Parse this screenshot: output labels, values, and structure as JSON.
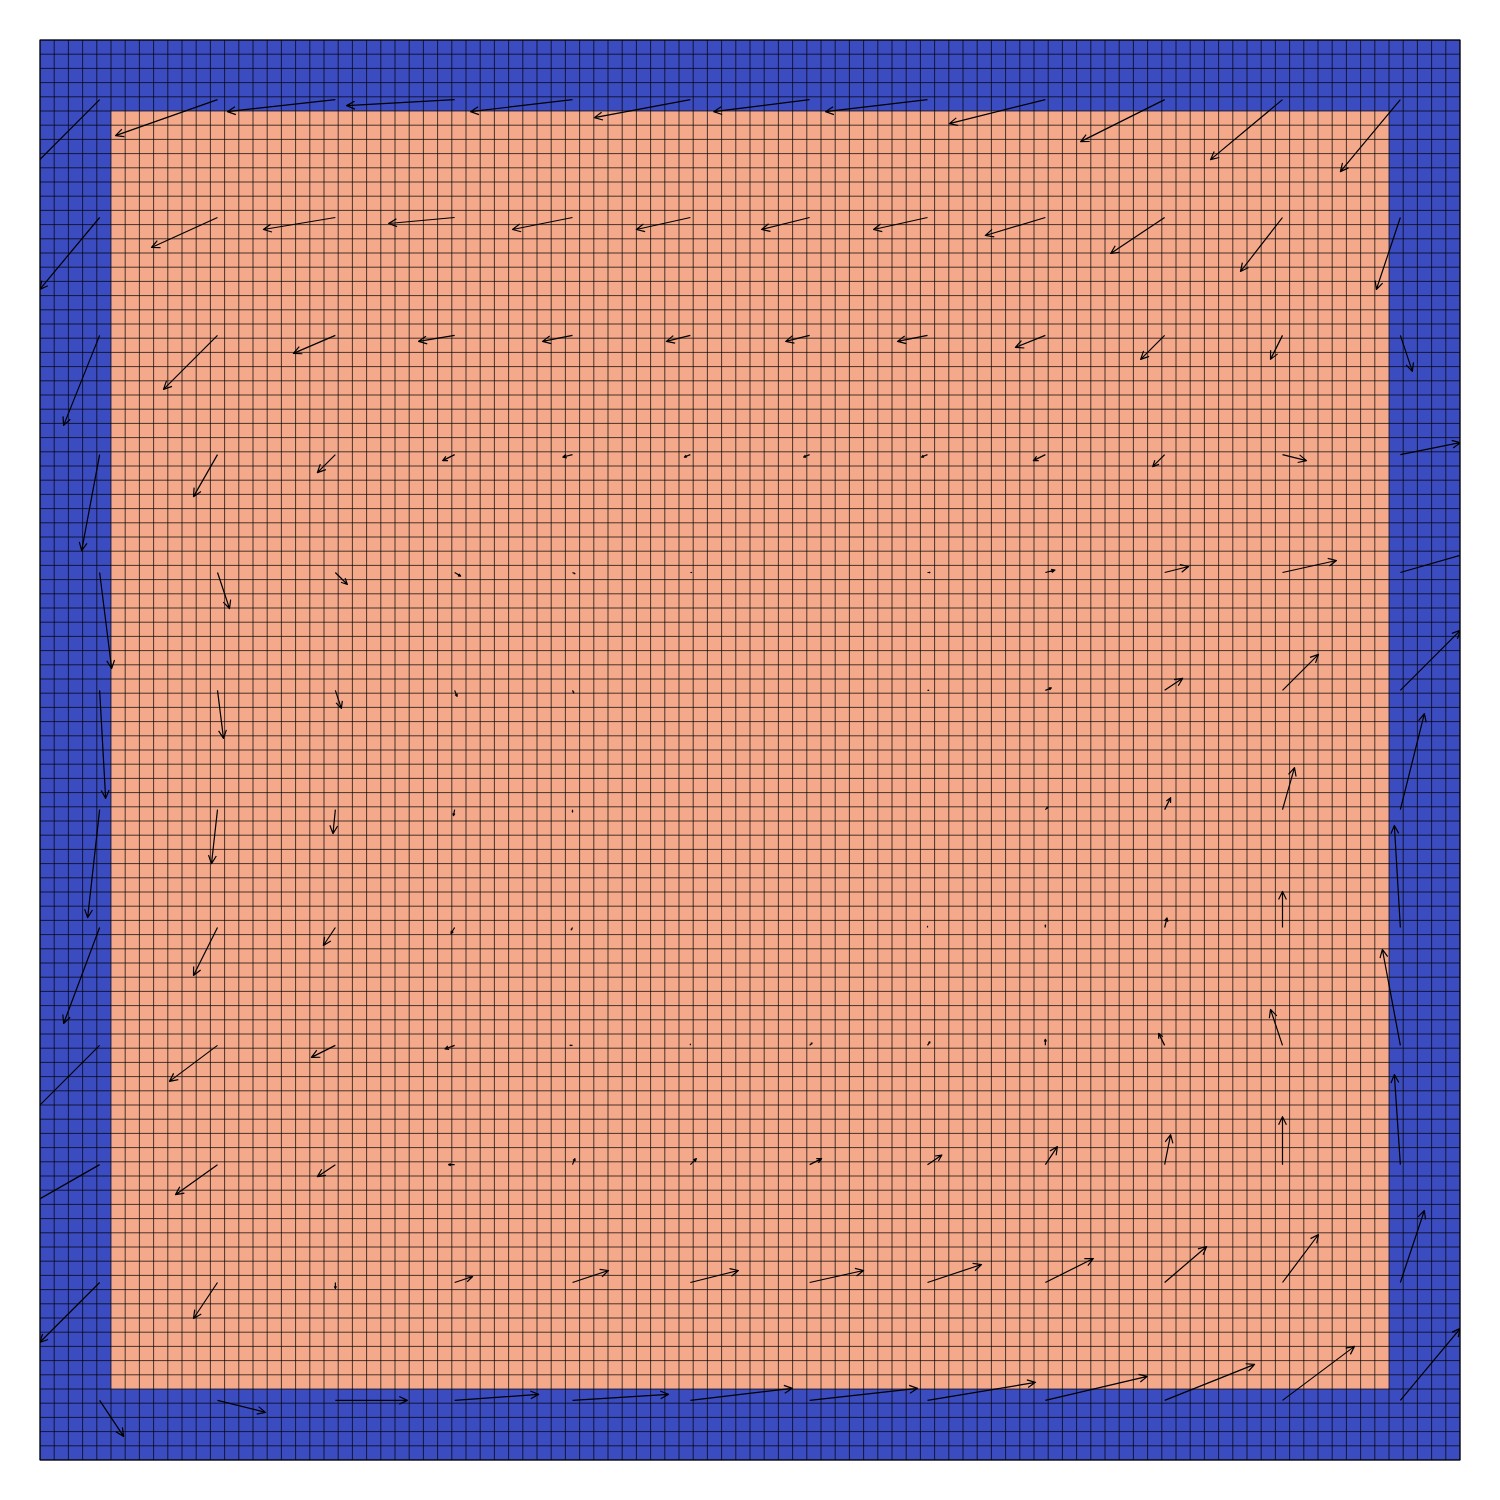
{
  "chart_data": {
    "type": "quiver",
    "xlim": [
      0,
      1
    ],
    "ylim": [
      0,
      1
    ],
    "tick_labels": false,
    "grid": true,
    "color": "#000000",
    "mesh": {
      "nx": 100,
      "ny": 100
    },
    "field": {
      "zlim": [
        0,
        1
      ],
      "colors": [
        "#3b4cc0",
        "#dddddd",
        "#f4a98a"
      ],
      "values": [
        [
          0,
          0,
          0,
          0,
          0,
          0,
          0,
          0,
          0,
          0,
          0,
          0,
          0,
          0,
          0,
          0,
          0,
          0,
          0,
          0
        ],
        [
          0,
          1,
          1,
          1,
          1,
          1,
          1,
          1,
          1,
          1,
          1,
          1,
          1,
          1,
          1,
          1,
          1,
          1,
          1,
          0
        ],
        [
          0,
          1,
          1,
          1,
          1,
          1,
          1,
          1,
          1,
          1,
          1,
          1,
          1,
          1,
          1,
          1,
          1,
          1,
          1,
          0
        ],
        [
          0,
          1,
          1,
          1,
          1,
          1,
          1,
          1,
          1,
          1,
          1,
          1,
          1,
          1,
          1,
          1,
          1,
          1,
          1,
          0
        ],
        [
          0,
          1,
          1,
          1,
          1,
          1,
          1,
          1,
          1,
          1,
          1,
          1,
          1,
          1,
          1,
          1,
          1,
          1,
          1,
          0
        ],
        [
          0,
          1,
          1,
          1,
          1,
          1,
          1,
          1,
          1,
          1,
          1,
          1,
          1,
          1,
          1,
          1,
          1,
          1,
          1,
          0
        ],
        [
          0,
          1,
          1,
          1,
          1,
          1,
          1,
          1,
          1,
          1,
          1,
          1,
          1,
          1,
          1,
          1,
          1,
          1,
          1,
          0
        ],
        [
          0,
          1,
          1,
          1,
          1,
          1,
          1,
          1,
          1,
          1,
          1,
          1,
          1,
          1,
          1,
          1,
          1,
          1,
          1,
          0
        ],
        [
          0,
          1,
          1,
          1,
          1,
          1,
          1,
          1,
          1,
          1,
          1,
          1,
          1,
          1,
          1,
          1,
          1,
          1,
          1,
          0
        ],
        [
          0,
          1,
          1,
          1,
          1,
          1,
          1,
          1,
          1,
          1,
          1,
          1,
          1,
          1,
          1,
          1,
          1,
          1,
          1,
          0
        ],
        [
          0,
          1,
          1,
          1,
          1,
          1,
          1,
          1,
          1,
          1,
          1,
          1,
          1,
          1,
          1,
          1,
          1,
          1,
          1,
          0
        ],
        [
          0,
          1,
          1,
          1,
          1,
          1,
          1,
          1,
          1,
          1,
          1,
          1,
          1,
          1,
          1,
          1,
          1,
          1,
          1,
          0
        ],
        [
          0,
          1,
          1,
          1,
          1,
          1,
          1,
          1,
          1,
          1,
          1,
          1,
          1,
          1,
          1,
          1,
          1,
          1,
          1,
          0
        ],
        [
          0,
          1,
          1,
          1,
          1,
          1,
          1,
          1,
          1,
          1,
          1,
          1,
          1,
          1,
          1,
          1,
          1,
          1,
          1,
          0
        ],
        [
          0,
          1,
          1,
          1,
          1,
          1,
          1,
          1,
          1,
          1,
          1,
          1,
          1,
          1,
          1,
          1,
          1,
          1,
          1,
          0
        ],
        [
          0,
          1,
          1,
          1,
          1,
          1,
          1,
          1,
          1,
          1,
          1,
          1,
          1,
          1,
          1,
          1,
          1,
          1,
          1,
          0
        ],
        [
          0,
          1,
          1,
          1,
          1,
          1,
          1,
          1,
          1,
          1,
          1,
          1,
          1,
          1,
          1,
          1,
          1,
          1,
          1,
          0
        ],
        [
          0,
          1,
          1,
          1,
          1,
          1,
          1,
          1,
          1,
          1,
          1,
          1,
          1,
          1,
          1,
          1,
          1,
          1,
          1,
          0
        ],
        [
          0,
          1,
          1,
          1,
          1,
          1,
          1,
          1,
          1,
          1,
          1,
          1,
          1,
          1,
          1,
          1,
          1,
          1,
          1,
          0
        ],
        [
          0,
          0,
          0,
          0,
          0,
          0,
          0,
          0,
          0,
          0,
          0,
          0,
          0,
          0,
          0,
          0,
          0,
          0,
          0,
          0
        ]
      ]
    },
    "x": [
      0.042,
      0.125,
      0.208,
      0.292,
      0.375,
      0.458,
      0.542,
      0.625,
      0.708,
      0.792,
      0.875,
      0.958
    ],
    "y": [
      0.958,
      0.875,
      0.792,
      0.708,
      0.625,
      0.542,
      0.458,
      0.375,
      0.292,
      0.208,
      0.125,
      0.042
    ],
    "u": [
      [
        -0.6,
        -0.85,
        -0.9,
        -0.9,
        -0.85,
        -0.8,
        -0.8,
        -0.85,
        -0.8,
        -0.7,
        -0.6,
        -0.5
      ],
      [
        -0.5,
        -0.55,
        -0.6,
        -0.55,
        -0.5,
        -0.45,
        -0.4,
        -0.45,
        -0.5,
        -0.45,
        -0.35,
        -0.2
      ],
      [
        -0.3,
        -0.45,
        -0.35,
        -0.3,
        -0.25,
        -0.2,
        -0.2,
        -0.25,
        -0.25,
        -0.2,
        -0.1,
        0.1
      ],
      [
        -0.15,
        -0.2,
        -0.15,
        -0.1,
        -0.08,
        -0.05,
        -0.05,
        -0.05,
        -0.1,
        -0.1,
        0.2,
        0.5
      ],
      [
        0.1,
        0.1,
        0.1,
        0.05,
        0.02,
        0.01,
        0.0,
        0.02,
        0.08,
        0.2,
        0.45,
        0.7
      ],
      [
        0.05,
        0.05,
        0.05,
        0.02,
        0.01,
        0.0,
        0.0,
        0.01,
        0.05,
        0.15,
        0.3,
        0.5
      ],
      [
        -0.1,
        -0.05,
        -0.02,
        -0.01,
        0.0,
        0.0,
        0.0,
        0.0,
        0.02,
        0.05,
        0.1,
        0.2
      ],
      [
        -0.3,
        -0.2,
        -0.1,
        -0.03,
        -0.01,
        0.0,
        0.0,
        0.0,
        0.0,
        0.02,
        0.0,
        -0.05
      ],
      [
        -0.6,
        -0.4,
        -0.2,
        -0.08,
        -0.02,
        0.0,
        0.02,
        0.02,
        0.0,
        -0.05,
        -0.1,
        -0.15
      ],
      [
        -0.7,
        -0.35,
        -0.15,
        -0.05,
        0.02,
        0.05,
        0.1,
        0.12,
        0.1,
        0.05,
        0.0,
        -0.05
      ],
      [
        -0.5,
        -0.2,
        0.0,
        0.15,
        0.3,
        0.4,
        0.45,
        0.45,
        0.4,
        0.35,
        0.3,
        0.2
      ],
      [
        0.2,
        0.4,
        0.6,
        0.7,
        0.8,
        0.85,
        0.9,
        0.9,
        0.85,
        0.75,
        0.6,
        0.5
      ]
    ],
    "v": [
      [
        -0.6,
        -0.3,
        -0.1,
        -0.05,
        -0.1,
        -0.15,
        -0.1,
        -0.1,
        -0.2,
        -0.35,
        -0.5,
        -0.6
      ],
      [
        -0.6,
        -0.25,
        -0.1,
        -0.05,
        -0.1,
        -0.1,
        -0.1,
        -0.1,
        -0.15,
        -0.3,
        -0.45,
        -0.6
      ],
      [
        -0.75,
        -0.45,
        -0.15,
        -0.05,
        -0.05,
        -0.05,
        -0.05,
        -0.05,
        -0.1,
        -0.2,
        -0.2,
        -0.3
      ],
      [
        -0.8,
        -0.35,
        -0.15,
        -0.05,
        -0.02,
        -0.02,
        -0.02,
        -0.02,
        -0.05,
        -0.1,
        -0.05,
        0.1
      ],
      [
        -0.8,
        -0.3,
        -0.1,
        -0.03,
        -0.01,
        0.0,
        0.0,
        0.0,
        0.02,
        0.05,
        0.1,
        0.2
      ],
      [
        -0.9,
        -0.4,
        -0.15,
        -0.05,
        -0.02,
        0.0,
        0.0,
        0.0,
        0.02,
        0.1,
        0.3,
        0.5
      ],
      [
        -0.9,
        -0.45,
        -0.2,
        -0.05,
        -0.02,
        0.0,
        0.0,
        0.0,
        0.02,
        0.1,
        0.35,
        0.8
      ],
      [
        -0.8,
        -0.4,
        -0.15,
        -0.05,
        -0.02,
        0.0,
        0.0,
        0.01,
        0.02,
        0.08,
        0.3,
        0.85
      ],
      [
        -0.6,
        -0.3,
        -0.1,
        -0.03,
        0.0,
        0.01,
        0.02,
        0.03,
        0.05,
        0.1,
        0.3,
        0.8
      ],
      [
        -0.4,
        -0.25,
        -0.1,
        0.0,
        0.05,
        0.05,
        0.05,
        0.08,
        0.15,
        0.25,
        0.4,
        0.75
      ],
      [
        -0.5,
        -0.3,
        -0.05,
        0.05,
        0.1,
        0.1,
        0.1,
        0.15,
        0.2,
        0.3,
        0.4,
        0.6
      ],
      [
        -0.3,
        -0.1,
        0.0,
        0.05,
        0.05,
        0.1,
        0.1,
        0.15,
        0.2,
        0.3,
        0.45,
        0.6
      ]
    ]
  }
}
